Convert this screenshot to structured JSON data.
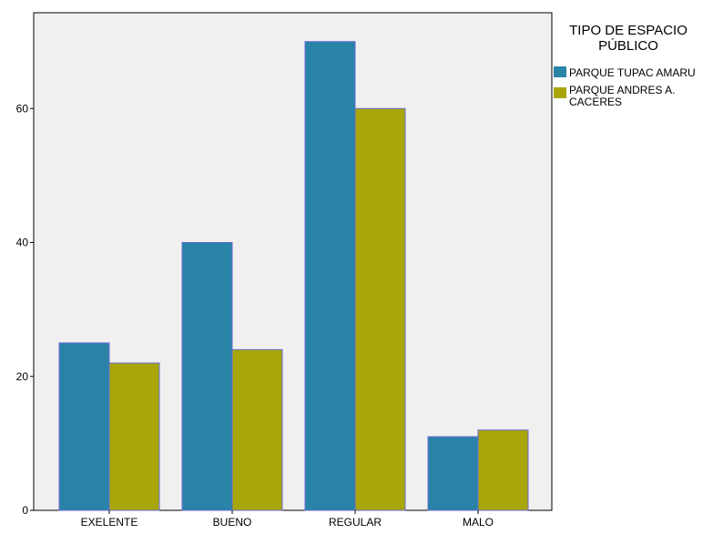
{
  "chart_data": {
    "type": "bar",
    "categories": [
      "EXELENTE",
      "BUENO",
      "REGULAR",
      "MALO"
    ],
    "series": [
      {
        "name": "PARQUE TUPAC AMARU",
        "values": [
          25,
          40,
          70,
          11
        ],
        "color": "#2883a7"
      },
      {
        "name": "PARQUE ANDRES A. CACERES",
        "values": [
          22,
          24,
          60,
          12
        ],
        "color": "#a8a60a"
      }
    ],
    "yticks": [
      0,
      20,
      40,
      60
    ],
    "ylim": [
      0,
      74.3
    ],
    "legend": {
      "title_lines": [
        "TIPO DE ESPACIO",
        "PÚBLICO"
      ],
      "label_lines": [
        [
          "PARQUE TUPAC AMARU"
        ],
        [
          "PARQUE ANDRES A.",
          "CACERES"
        ]
      ],
      "placement": "top-right"
    },
    "plot_background": "#f0f0f0",
    "bar_border": "#6b6bd6",
    "grid": false
  }
}
